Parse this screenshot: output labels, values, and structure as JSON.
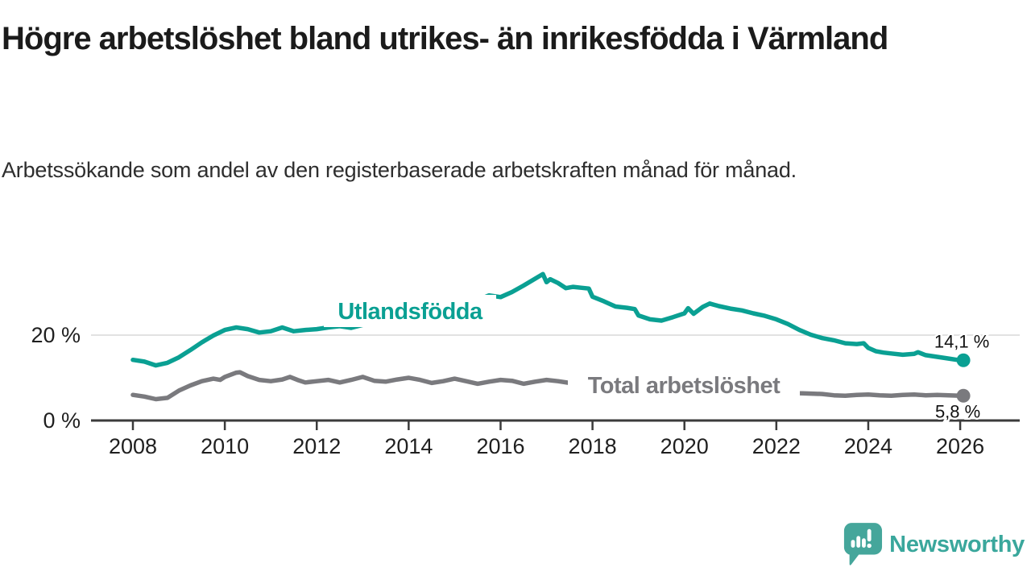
{
  "chart_data": {
    "type": "line",
    "title": "Högre arbetslöshet bland utrikes- än inrikesfödda i Värmland",
    "subtitle": "Arbetssökande som andel av den registerbaserade arbetskraften månad för månad.",
    "unit": "%",
    "x_range": [
      2008,
      2026
    ],
    "y_range": [
      0,
      36
    ],
    "grid": "single-horizontal-gridline-at-20",
    "legend_position": "inline-labels-on-lines",
    "x_ticks": [
      2008,
      2010,
      2012,
      2014,
      2016,
      2018,
      2020,
      2022,
      2024,
      2026
    ],
    "y_ticks": [
      {
        "value": 0,
        "label": "0 %"
      },
      {
        "value": 20,
        "label": "20 %"
      }
    ],
    "series": [
      {
        "id": "utlandsfodda",
        "name": "Utlandsfödda",
        "color": "#0aa093",
        "end_label": "14,1 %",
        "end_value": 14.1,
        "points": [
          [
            2008.0,
            14.2
          ],
          [
            2008.25,
            13.8
          ],
          [
            2008.5,
            12.9
          ],
          [
            2008.75,
            13.5
          ],
          [
            2009.0,
            14.8
          ],
          [
            2009.25,
            16.5
          ],
          [
            2009.5,
            18.3
          ],
          [
            2009.75,
            19.9
          ],
          [
            2010.0,
            21.2
          ],
          [
            2010.25,
            21.8
          ],
          [
            2010.5,
            21.4
          ],
          [
            2010.75,
            20.6
          ],
          [
            2011.0,
            20.9
          ],
          [
            2011.25,
            21.8
          ],
          [
            2011.5,
            20.9
          ],
          [
            2011.75,
            21.2
          ],
          [
            2012.0,
            21.4
          ],
          [
            2012.25,
            21.8
          ],
          [
            2012.5,
            22.1
          ],
          [
            2012.75,
            21.7
          ],
          [
            2013.0,
            22.4
          ],
          [
            2013.25,
            22.8
          ],
          [
            2013.5,
            23.1
          ],
          [
            2013.75,
            23.4
          ],
          [
            2014.0,
            24.0
          ],
          [
            2014.25,
            24.6
          ],
          [
            2014.5,
            25.2
          ],
          [
            2014.75,
            25.9
          ],
          [
            2015.0,
            26.6
          ],
          [
            2015.25,
            27.4
          ],
          [
            2015.5,
            28.2
          ],
          [
            2015.75,
            29.3
          ],
          [
            2016.0,
            28.9
          ],
          [
            2016.25,
            30.1
          ],
          [
            2016.5,
            31.6
          ],
          [
            2016.75,
            33.2
          ],
          [
            2016.92,
            34.3
          ],
          [
            2017.0,
            32.4
          ],
          [
            2017.08,
            33.1
          ],
          [
            2017.25,
            32.2
          ],
          [
            2017.42,
            31.0
          ],
          [
            2017.58,
            31.3
          ],
          [
            2017.75,
            31.1
          ],
          [
            2017.92,
            30.9
          ],
          [
            2018.0,
            29.0
          ],
          [
            2018.25,
            27.9
          ],
          [
            2018.5,
            26.7
          ],
          [
            2018.75,
            26.4
          ],
          [
            2018.92,
            26.1
          ],
          [
            2019.0,
            24.6
          ],
          [
            2019.25,
            23.7
          ],
          [
            2019.5,
            23.4
          ],
          [
            2019.75,
            24.2
          ],
          [
            2020.0,
            25.1
          ],
          [
            2020.08,
            26.3
          ],
          [
            2020.2,
            25.0
          ],
          [
            2020.4,
            26.6
          ],
          [
            2020.55,
            27.4
          ],
          [
            2020.75,
            26.8
          ],
          [
            2021.0,
            26.2
          ],
          [
            2021.25,
            25.8
          ],
          [
            2021.5,
            25.1
          ],
          [
            2021.75,
            24.5
          ],
          [
            2022.0,
            23.7
          ],
          [
            2022.25,
            22.6
          ],
          [
            2022.5,
            21.2
          ],
          [
            2022.75,
            20.1
          ],
          [
            2023.0,
            19.3
          ],
          [
            2023.25,
            18.8
          ],
          [
            2023.5,
            18.1
          ],
          [
            2023.75,
            17.9
          ],
          [
            2023.9,
            18.1
          ],
          [
            2024.0,
            17.0
          ],
          [
            2024.17,
            16.2
          ],
          [
            2024.33,
            15.9
          ],
          [
            2024.5,
            15.7
          ],
          [
            2024.75,
            15.4
          ],
          [
            2025.0,
            15.6
          ],
          [
            2025.08,
            16.0
          ],
          [
            2025.25,
            15.3
          ],
          [
            2025.5,
            14.9
          ],
          [
            2025.75,
            14.5
          ],
          [
            2026.0,
            14.1
          ]
        ]
      },
      {
        "id": "total",
        "name": "Total arbetslöshet",
        "color": "#7a7a7e",
        "end_label": "5,8 %",
        "end_value": 5.8,
        "points": [
          [
            2008.0,
            6.0
          ],
          [
            2008.25,
            5.6
          ],
          [
            2008.5,
            5.0
          ],
          [
            2008.75,
            5.3
          ],
          [
            2009.0,
            7.0
          ],
          [
            2009.25,
            8.2
          ],
          [
            2009.5,
            9.2
          ],
          [
            2009.75,
            9.8
          ],
          [
            2009.9,
            9.5
          ],
          [
            2010.0,
            10.2
          ],
          [
            2010.25,
            11.2
          ],
          [
            2010.33,
            11.3
          ],
          [
            2010.5,
            10.4
          ],
          [
            2010.75,
            9.5
          ],
          [
            2011.0,
            9.2
          ],
          [
            2011.25,
            9.6
          ],
          [
            2011.42,
            10.2
          ],
          [
            2011.58,
            9.5
          ],
          [
            2011.75,
            8.9
          ],
          [
            2012.0,
            9.2
          ],
          [
            2012.25,
            9.5
          ],
          [
            2012.5,
            8.9
          ],
          [
            2012.75,
            9.5
          ],
          [
            2013.0,
            10.2
          ],
          [
            2013.25,
            9.3
          ],
          [
            2013.5,
            9.1
          ],
          [
            2013.75,
            9.6
          ],
          [
            2014.0,
            10.0
          ],
          [
            2014.25,
            9.5
          ],
          [
            2014.5,
            8.8
          ],
          [
            2014.75,
            9.2
          ],
          [
            2015.0,
            9.8
          ],
          [
            2015.25,
            9.2
          ],
          [
            2015.5,
            8.6
          ],
          [
            2015.75,
            9.1
          ],
          [
            2016.0,
            9.5
          ],
          [
            2016.25,
            9.3
          ],
          [
            2016.5,
            8.6
          ],
          [
            2016.75,
            9.1
          ],
          [
            2017.0,
            9.5
          ],
          [
            2017.25,
            9.2
          ],
          [
            2017.5,
            8.8
          ],
          [
            2017.75,
            8.3
          ],
          [
            2018.0,
            7.8
          ],
          [
            2018.25,
            7.6
          ],
          [
            2018.5,
            7.4
          ],
          [
            2018.75,
            7.3
          ],
          [
            2019.0,
            7.1
          ],
          [
            2019.25,
            6.9
          ],
          [
            2019.5,
            6.8
          ],
          [
            2019.75,
            7.0
          ],
          [
            2020.0,
            7.3
          ],
          [
            2020.25,
            8.3
          ],
          [
            2020.5,
            8.8
          ],
          [
            2020.75,
            8.5
          ],
          [
            2021.0,
            8.1
          ],
          [
            2021.25,
            7.8
          ],
          [
            2021.5,
            7.4
          ],
          [
            2021.75,
            7.1
          ],
          [
            2022.0,
            6.9
          ],
          [
            2022.25,
            6.6
          ],
          [
            2022.5,
            6.4
          ],
          [
            2022.75,
            6.3
          ],
          [
            2023.0,
            6.2
          ],
          [
            2023.25,
            5.9
          ],
          [
            2023.5,
            5.8
          ],
          [
            2023.75,
            6.0
          ],
          [
            2024.0,
            6.1
          ],
          [
            2024.25,
            5.9
          ],
          [
            2024.5,
            5.8
          ],
          [
            2024.75,
            6.0
          ],
          [
            2025.0,
            6.1
          ],
          [
            2025.25,
            5.9
          ],
          [
            2025.5,
            6.0
          ],
          [
            2025.75,
            5.9
          ],
          [
            2026.0,
            5.8
          ]
        ]
      }
    ]
  },
  "footer": {
    "brand": "Newsworthy",
    "logo_color": "#45a69b"
  }
}
